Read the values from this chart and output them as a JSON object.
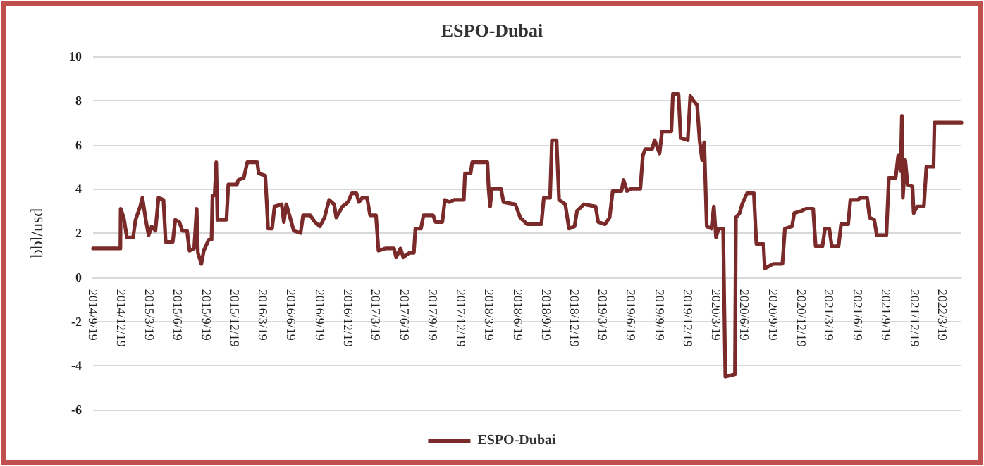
{
  "chart_data": {
    "type": "line",
    "title": "ESPO-Dubai",
    "ylabel": "bbl/usd",
    "legend": "bottom",
    "grid": "y",
    "marker": "none",
    "line_style": "solid",
    "xlim": [
      "2014-09-19",
      "2022-05-19"
    ],
    "xticks": [
      {
        "value": "2014-09-19",
        "label": "2014/9/19"
      },
      {
        "value": "2014-12-19",
        "label": "2014/12/19"
      },
      {
        "value": "2015-03-19",
        "label": "2015/3/19"
      },
      {
        "value": "2015-06-19",
        "label": "2015/6/19"
      },
      {
        "value": "2015-09-19",
        "label": "2015/9/19"
      },
      {
        "value": "2015-12-19",
        "label": "2015/12/19"
      },
      {
        "value": "2016-03-19",
        "label": "2016/3/19"
      },
      {
        "value": "2016-06-19",
        "label": "2016/6/19"
      },
      {
        "value": "2016-09-19",
        "label": "2016/9/19"
      },
      {
        "value": "2016-12-19",
        "label": "2016/12/19"
      },
      {
        "value": "2017-03-19",
        "label": "2017/3/19"
      },
      {
        "value": "2017-06-19",
        "label": "2017/6/19"
      },
      {
        "value": "2017-09-19",
        "label": "2017/9/19"
      },
      {
        "value": "2017-12-19",
        "label": "2017/12/19"
      },
      {
        "value": "2018-03-19",
        "label": "2018/3/19"
      },
      {
        "value": "2018-06-19",
        "label": "2018/6/19"
      },
      {
        "value": "2018-09-19",
        "label": "2018/9/19"
      },
      {
        "value": "2018-12-19",
        "label": "2018/12/19"
      },
      {
        "value": "2019-03-19",
        "label": "2019/3/19"
      },
      {
        "value": "2019-06-19",
        "label": "2019/6/19"
      },
      {
        "value": "2019-09-19",
        "label": "2019/9/19"
      },
      {
        "value": "2019-12-19",
        "label": "2019/12/19"
      },
      {
        "value": "2020-03-19",
        "label": "2020/3/19"
      },
      {
        "value": "2020-06-19",
        "label": "2020/6/19"
      },
      {
        "value": "2020-09-19",
        "label": "2020/9/19"
      },
      {
        "value": "2020-12-19",
        "label": "2020/12/19"
      },
      {
        "value": "2021-03-19",
        "label": "2021/3/19"
      },
      {
        "value": "2021-06-19",
        "label": "2021/6/19"
      },
      {
        "value": "2021-09-19",
        "label": "2021/9/19"
      },
      {
        "value": "2021-12-19",
        "label": "2021/12/19"
      },
      {
        "value": "2022-03-19",
        "label": "2022/3/19"
      }
    ],
    "ylim": [
      -6,
      10
    ],
    "yticks": [
      -6,
      -4,
      -2,
      0,
      2,
      4,
      6,
      8,
      10
    ],
    "series": [
      {
        "name": "ESPO-Dubai",
        "color": "#7b2a2a",
        "x": [
          "2014-09-19",
          "2014-12-16",
          "2014-12-17",
          "2014-12-27",
          "2015-01-06",
          "2015-01-26",
          "2015-02-03",
          "2015-02-18",
          "2015-02-25",
          "2015-03-08",
          "2015-03-17",
          "2015-03-27",
          "2015-04-08",
          "2015-04-18",
          "2015-05-04",
          "2015-05-11",
          "2015-06-03",
          "2015-06-11",
          "2015-06-24",
          "2015-07-04",
          "2015-07-19",
          "2015-07-27",
          "2015-08-11",
          "2015-08-19",
          "2015-08-23",
          "2015-09-03",
          "2015-09-11",
          "2015-09-27",
          "2015-10-06",
          "2015-10-09",
          "2015-10-16",
          "2015-10-21",
          "2015-10-25",
          "2015-11-23",
          "2015-11-29",
          "2015-12-27",
          "2015-12-31",
          "2016-01-18",
          "2016-01-29",
          "2016-03-01",
          "2016-03-06",
          "2016-03-27",
          "2016-03-31",
          "2016-04-05",
          "2016-04-18",
          "2016-04-26",
          "2016-05-19",
          "2016-05-26",
          "2016-06-03",
          "2016-06-15",
          "2016-06-27",
          "2016-07-19",
          "2016-07-27",
          "2016-08-19",
          "2016-09-03",
          "2016-09-19",
          "2016-10-04",
          "2016-10-19",
          "2016-11-04",
          "2016-11-11",
          "2016-12-01",
          "2016-12-19",
          "2016-12-31",
          "2017-01-15",
          "2017-01-23",
          "2017-02-03",
          "2017-02-18",
          "2017-02-28",
          "2017-03-19",
          "2017-03-27",
          "2017-04-18",
          "2017-05-16",
          "2017-05-23",
          "2017-06-06",
          "2017-06-15",
          "2017-07-04",
          "2017-07-19",
          "2017-07-24",
          "2017-08-11",
          "2017-08-19",
          "2017-09-19",
          "2017-09-27",
          "2017-10-19",
          "2017-10-27",
          "2017-11-11",
          "2017-11-26",
          "2017-12-27",
          "2017-12-31",
          "2018-01-18",
          "2018-01-23",
          "2018-03-13",
          "2018-03-17",
          "2018-03-22",
          "2018-03-27",
          "2018-04-26",
          "2018-05-04",
          "2018-06-11",
          "2018-06-27",
          "2018-07-19",
          "2018-09-03",
          "2018-09-11",
          "2018-10-01",
          "2018-10-07",
          "2018-10-22",
          "2018-10-30",
          "2018-11-19",
          "2018-12-01",
          "2018-12-19",
          "2018-12-27",
          "2019-01-18",
          "2019-02-25",
          "2019-03-05",
          "2019-03-27",
          "2019-04-11",
          "2019-04-21",
          "2019-05-19",
          "2019-05-26",
          "2019-06-06",
          "2019-06-19",
          "2019-07-19",
          "2019-07-27",
          "2019-08-04",
          "2019-08-26",
          "2019-09-03",
          "2019-09-19",
          "2019-09-27",
          "2019-10-27",
          "2019-11-01",
          "2019-11-19",
          "2019-11-26",
          "2019-12-19",
          "2019-12-27",
          "2020-01-11",
          "2020-01-18",
          "2020-01-26",
          "2020-02-03",
          "2020-02-10",
          "2020-02-18",
          "2020-03-04",
          "2020-03-12",
          "2020-03-19",
          "2020-03-27",
          "2020-04-11",
          "2020-04-18",
          "2020-05-19",
          "2020-05-22",
          "2020-06-03",
          "2020-06-11",
          "2020-06-27",
          "2020-07-19",
          "2020-07-27",
          "2020-08-19",
          "2020-08-23",
          "2020-09-06",
          "2020-09-19",
          "2020-10-19",
          "2020-10-27",
          "2020-11-19",
          "2020-11-26",
          "2020-12-19",
          "2021-01-03",
          "2021-01-26",
          "2021-02-03",
          "2021-02-25",
          "2021-03-05",
          "2021-03-19",
          "2021-03-27",
          "2021-04-18",
          "2021-04-26",
          "2021-05-19",
          "2021-05-26",
          "2021-06-19",
          "2021-06-27",
          "2021-07-19",
          "2021-07-27",
          "2021-08-11",
          "2021-08-19",
          "2021-09-19",
          "2021-09-27",
          "2021-10-19",
          "2021-10-27",
          "2021-11-04",
          "2021-11-08",
          "2021-11-11",
          "2021-11-19",
          "2021-11-26",
          "2021-12-12",
          "2021-12-16",
          "2021-12-27",
          "2022-01-18",
          "2022-01-26",
          "2022-02-18",
          "2022-02-21",
          "2022-05-19"
        ],
        "values": [
          1.3,
          1.3,
          3.1,
          2.7,
          1.8,
          1.8,
          2.6,
          3.2,
          3.6,
          2.6,
          1.9,
          2.3,
          2.1,
          3.6,
          3.5,
          1.6,
          1.6,
          2.6,
          2.5,
          2.1,
          2.1,
          1.2,
          1.3,
          3.1,
          1.1,
          0.6,
          1.2,
          1.7,
          1.7,
          3.7,
          3.7,
          5.2,
          2.6,
          2.6,
          4.2,
          4.2,
          4.4,
          4.5,
          5.2,
          5.2,
          4.7,
          4.6,
          3.6,
          2.2,
          2.2,
          3.2,
          3.3,
          2.5,
          3.3,
          2.7,
          2.1,
          2.0,
          2.8,
          2.8,
          2.5,
          2.3,
          2.7,
          3.5,
          3.3,
          2.7,
          3.2,
          3.4,
          3.8,
          3.8,
          3.4,
          3.6,
          3.6,
          2.8,
          2.8,
          1.2,
          1.3,
          1.3,
          0.9,
          1.3,
          0.9,
          1.1,
          1.1,
          2.2,
          2.2,
          2.8,
          2.8,
          2.5,
          2.5,
          3.5,
          3.4,
          3.5,
          3.5,
          4.7,
          4.7,
          5.2,
          5.2,
          4.0,
          3.2,
          4.0,
          4.0,
          3.4,
          3.3,
          2.7,
          2.4,
          2.4,
          3.6,
          3.6,
          6.2,
          6.2,
          3.5,
          3.3,
          2.2,
          2.3,
          3.0,
          3.3,
          3.2,
          2.5,
          2.4,
          2.7,
          3.9,
          3.9,
          4.4,
          3.9,
          4.0,
          4.0,
          5.5,
          5.8,
          5.8,
          6.2,
          5.6,
          6.6,
          6.6,
          8.3,
          8.3,
          6.3,
          6.2,
          8.2,
          7.9,
          7.8,
          6.2,
          5.3,
          6.1,
          2.3,
          2.2,
          3.2,
          1.8,
          2.2,
          2.2,
          -4.5,
          -4.4,
          2.7,
          2.9,
          3.3,
          3.8,
          3.8,
          1.5,
          1.5,
          0.4,
          0.5,
          0.6,
          0.6,
          2.2,
          2.3,
          2.9,
          3.0,
          3.1,
          3.1,
          1.4,
          1.4,
          2.2,
          2.2,
          1.4,
          1.4,
          2.4,
          2.4,
          3.5,
          3.5,
          3.6,
          3.6,
          2.7,
          2.6,
          1.9,
          1.9,
          4.5,
          4.5,
          5.5,
          4.8,
          7.3,
          3.6,
          5.3,
          4.2,
          4.1,
          2.9,
          3.2,
          3.2,
          5.0,
          5.0,
          7.0,
          7.0
        ]
      }
    ]
  }
}
